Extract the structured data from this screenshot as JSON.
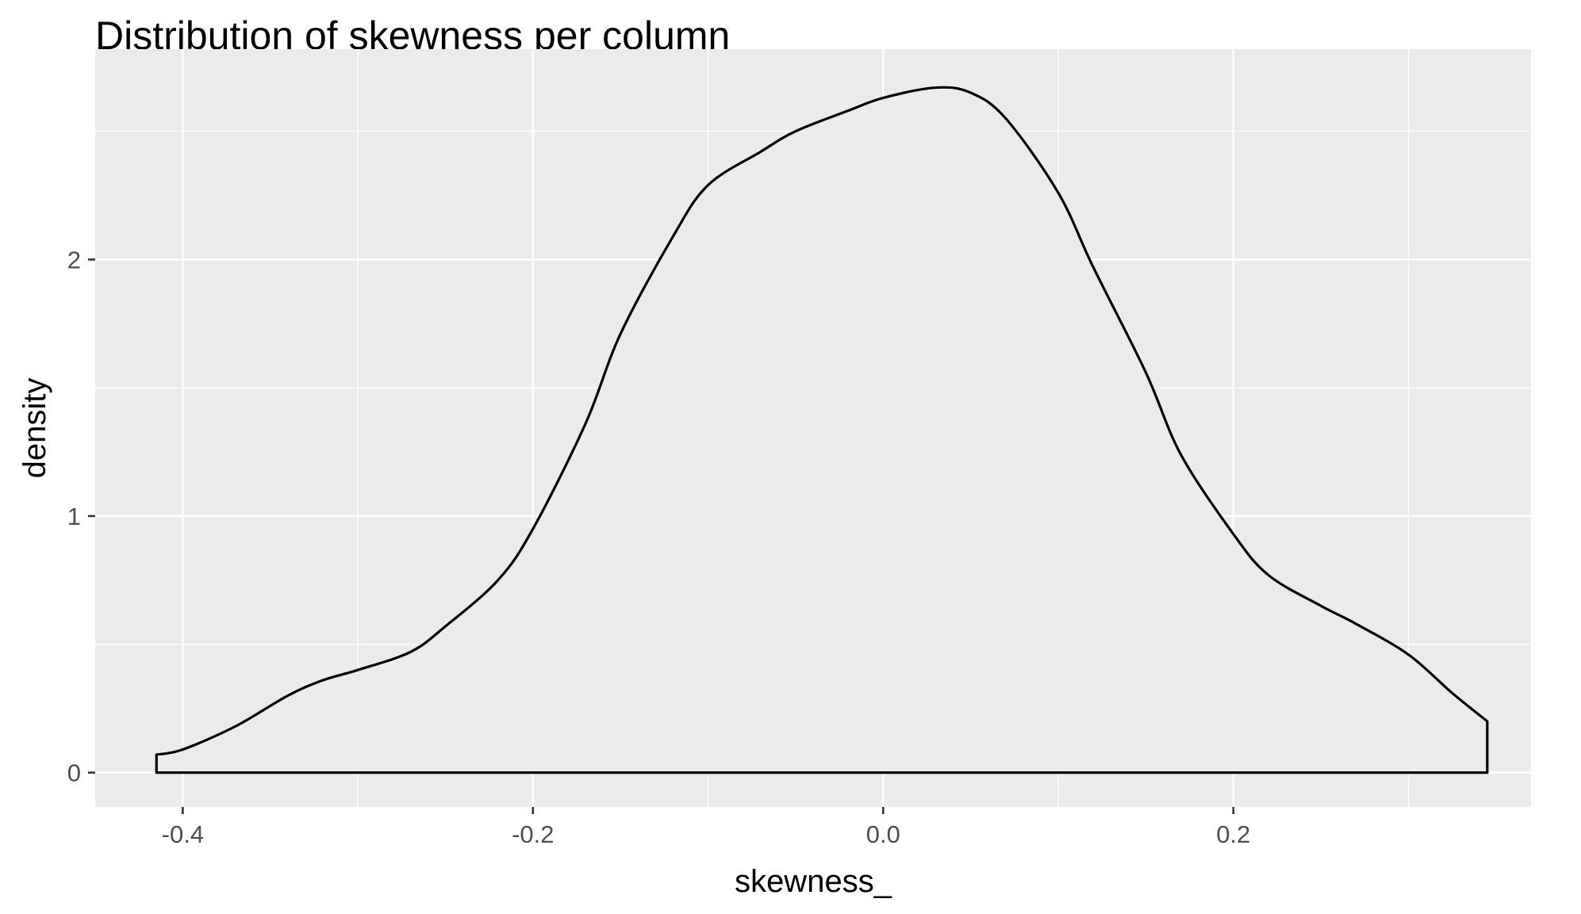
{
  "chart_data": {
    "type": "area",
    "title": "Distribution of skewness per column",
    "xlabel": "skewness_",
    "ylabel": "density",
    "xlim": [
      -0.45,
      0.37
    ],
    "ylim": [
      -0.134,
      2.82
    ],
    "x_ticks": [
      -0.4,
      -0.2,
      0.0,
      0.2
    ],
    "x_tick_labels": [
      "-0.4",
      "-0.2",
      "0.0",
      "0.2"
    ],
    "y_ticks": [
      0,
      1,
      2
    ],
    "y_tick_labels": [
      "0",
      "1",
      "2"
    ],
    "grid": true,
    "legend": "none",
    "colors": {
      "panel": "#EBEBEB",
      "grid": "#FFFFFF",
      "line": "#000000",
      "fill": "#EBEBEB"
    },
    "series": [
      {
        "x": [
          -0.415,
          -0.4,
          -0.37,
          -0.34,
          -0.32,
          -0.3,
          -0.27,
          -0.25,
          -0.22,
          -0.2,
          -0.17,
          -0.15,
          -0.12,
          -0.1,
          -0.07,
          -0.05,
          -0.02,
          0.0,
          0.03,
          0.05,
          0.07,
          0.1,
          0.12,
          0.15,
          0.17,
          0.2,
          0.22,
          0.25,
          0.27,
          0.3,
          0.325,
          0.345
        ],
        "values": [
          0.07,
          0.09,
          0.18,
          0.3,
          0.36,
          0.4,
          0.47,
          0.57,
          0.75,
          0.95,
          1.36,
          1.71,
          2.09,
          2.29,
          2.42,
          2.5,
          2.58,
          2.63,
          2.67,
          2.65,
          2.55,
          2.26,
          1.97,
          1.56,
          1.24,
          0.93,
          0.77,
          0.65,
          0.58,
          0.46,
          0.31,
          0.2
        ]
      }
    ]
  }
}
